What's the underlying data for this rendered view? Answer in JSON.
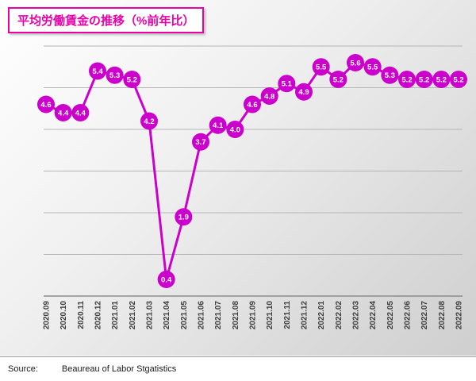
{
  "title": "平均労働賃金の推移（%前年比）",
  "source": {
    "label": "Source:",
    "text": "Beaureau of Labor Stgatistics"
  },
  "colors": {
    "series": "#cc00cc",
    "title_pink": "#ea00a8",
    "grid": "#b5b5b5",
    "axis": "#8c8c8c",
    "tick_text": "#3f3f3f",
    "marker_value_text": "#ffffff"
  },
  "chart_data": {
    "type": "line",
    "title": "平均労働賃金の推移（%前年比）",
    "x": [
      "2020.09",
      "2020.10",
      "2020.11",
      "2020.12",
      "2021.01",
      "2021.02",
      "2021.03",
      "2021.04",
      "2021.05",
      "2021.06",
      "2021.07",
      "2021.08",
      "2021.09",
      "2021.10",
      "2021.11",
      "2021.12",
      "2022.01",
      "2022.02",
      "2022.03",
      "2022.04",
      "2022.05",
      "2022.06",
      "2022.07",
      "2022.08",
      "2022.09"
    ],
    "values": [
      4.6,
      4.4,
      4.4,
      5.4,
      5.3,
      5.2,
      4.2,
      0.4,
      1.9,
      3.7,
      4.1,
      4.0,
      4.6,
      4.8,
      5.1,
      4.9,
      5.5,
      5.2,
      5.6,
      5.5,
      5.3,
      5.2,
      5.2,
      5.2,
      5.2
    ],
    "ylim": [
      0,
      6
    ],
    "grid_step": 1,
    "grid": true,
    "legend": "none",
    "marker": "circle-with-value",
    "xlabel": "",
    "ylabel": ""
  }
}
